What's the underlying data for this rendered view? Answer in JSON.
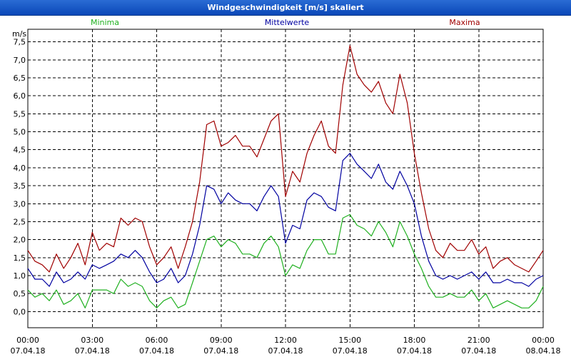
{
  "window": {
    "title": "Windgeschwindigkeit [m/s] skaliert"
  },
  "chart_data": {
    "type": "line",
    "title": "Windgeschwindigkeit [m/s] skaliert",
    "ylabel": "m/s",
    "xlabel": "",
    "ylim": [
      -0.45,
      7.85
    ],
    "yticks": [
      "0,0",
      "0,5",
      "1,0",
      "1,5",
      "2,0",
      "2,5",
      "3,0",
      "3,5",
      "4,0",
      "4,5",
      "5,0",
      "5,5",
      "6,0",
      "6,5",
      "7,0",
      "7,5"
    ],
    "yticks_values": [
      0,
      0.5,
      1,
      1.5,
      2,
      2.5,
      3,
      3.5,
      4,
      4.5,
      5,
      5.5,
      6,
      6.5,
      7,
      7.5
    ],
    "xlim_hours": [
      0,
      24
    ],
    "xticks_time": [
      "00:00",
      "03:00",
      "06:00",
      "09:00",
      "12:00",
      "15:00",
      "18:00",
      "21:00",
      "00:00"
    ],
    "xticks_date": [
      "07.04.18",
      "07.04.18",
      "07.04.18",
      "07.04.18",
      "07.04.18",
      "07.04.18",
      "07.04.18",
      "07.04.18",
      "08.04.18"
    ],
    "grid": true,
    "legend": [
      "Minima",
      "Mittelwerte",
      "Maxima"
    ],
    "colors": {
      "Minima": "#20b020",
      "Mittelwerte": "#0000a0",
      "Maxima": "#a00000",
      "grid": "#000000"
    },
    "x": [
      0,
      0.33,
      0.67,
      1,
      1.33,
      1.67,
      2,
      2.33,
      2.67,
      3,
      3.33,
      3.67,
      4,
      4.33,
      4.67,
      5,
      5.33,
      5.67,
      6,
      6.33,
      6.67,
      7,
      7.33,
      7.67,
      8,
      8.33,
      8.67,
      9,
      9.33,
      9.67,
      10,
      10.33,
      10.67,
      11,
      11.33,
      11.67,
      12,
      12.33,
      12.67,
      13,
      13.33,
      13.67,
      14,
      14.33,
      14.67,
      15,
      15.33,
      15.67,
      16,
      16.33,
      16.67,
      17,
      17.33,
      17.67,
      18,
      18.33,
      18.67,
      19,
      19.33,
      19.67,
      20,
      20.33,
      20.67,
      21,
      21.33,
      21.67,
      22,
      22.33,
      22.67,
      23,
      23.33,
      23.67,
      24
    ],
    "series": [
      {
        "name": "Maxima",
        "values": [
          1.7,
          1.4,
          1.3,
          1.1,
          1.6,
          1.2,
          1.5,
          1.9,
          1.3,
          2.2,
          1.7,
          1.9,
          1.8,
          2.6,
          2.4,
          2.6,
          2.5,
          1.8,
          1.3,
          1.5,
          1.8,
          1.2,
          1.8,
          2.5,
          3.6,
          5.2,
          5.3,
          4.6,
          4.7,
          4.9,
          4.6,
          4.6,
          4.3,
          4.8,
          5.3,
          5.5,
          3.2,
          3.9,
          3.6,
          4.4,
          4.9,
          5.3,
          4.6,
          4.4,
          6.3,
          7.4,
          6.6,
          6.3,
          6.1,
          6.4,
          5.8,
          5.5,
          6.6,
          5.8,
          4.4,
          3.3,
          2.3,
          1.7,
          1.5,
          1.9,
          1.7,
          1.7,
          2.0,
          1.6,
          1.8,
          1.2,
          1.4,
          1.5,
          1.3,
          1.2,
          1.1,
          1.4,
          1.7
        ]
      },
      {
        "name": "Mittelwerte",
        "values": [
          1.2,
          0.9,
          0.9,
          0.7,
          1.1,
          0.8,
          0.9,
          1.1,
          0.9,
          1.3,
          1.2,
          1.3,
          1.4,
          1.6,
          1.5,
          1.7,
          1.5,
          1.1,
          0.8,
          0.9,
          1.2,
          0.8,
          1.0,
          1.6,
          2.4,
          3.5,
          3.4,
          3.0,
          3.3,
          3.1,
          3.0,
          3.0,
          2.8,
          3.2,
          3.5,
          3.2,
          1.9,
          2.4,
          2.3,
          3.1,
          3.3,
          3.2,
          2.9,
          2.8,
          4.2,
          4.4,
          4.1,
          3.9,
          3.7,
          4.1,
          3.6,
          3.4,
          3.9,
          3.5,
          3.0,
          2.1,
          1.4,
          1.0,
          0.9,
          1.0,
          0.9,
          1.0,
          1.1,
          0.9,
          1.1,
          0.8,
          0.8,
          0.9,
          0.8,
          0.8,
          0.7,
          0.9,
          1.0
        ]
      },
      {
        "name": "Minima",
        "values": [
          0.6,
          0.4,
          0.5,
          0.3,
          0.6,
          0.2,
          0.3,
          0.5,
          0.1,
          0.6,
          0.6,
          0.6,
          0.5,
          0.9,
          0.7,
          0.8,
          0.7,
          0.3,
          0.1,
          0.3,
          0.4,
          0.1,
          0.2,
          0.8,
          1.4,
          2.0,
          2.1,
          1.8,
          2.0,
          1.9,
          1.6,
          1.6,
          1.5,
          1.9,
          2.1,
          1.8,
          1.0,
          1.3,
          1.2,
          1.7,
          2.0,
          2.0,
          1.6,
          1.6,
          2.6,
          2.7,
          2.4,
          2.3,
          2.1,
          2.5,
          2.2,
          1.8,
          2.5,
          2.1,
          1.6,
          1.2,
          0.7,
          0.4,
          0.4,
          0.5,
          0.4,
          0.4,
          0.6,
          0.3,
          0.5,
          0.1,
          0.2,
          0.3,
          0.2,
          0.1,
          0.1,
          0.3,
          0.7
        ]
      }
    ]
  }
}
